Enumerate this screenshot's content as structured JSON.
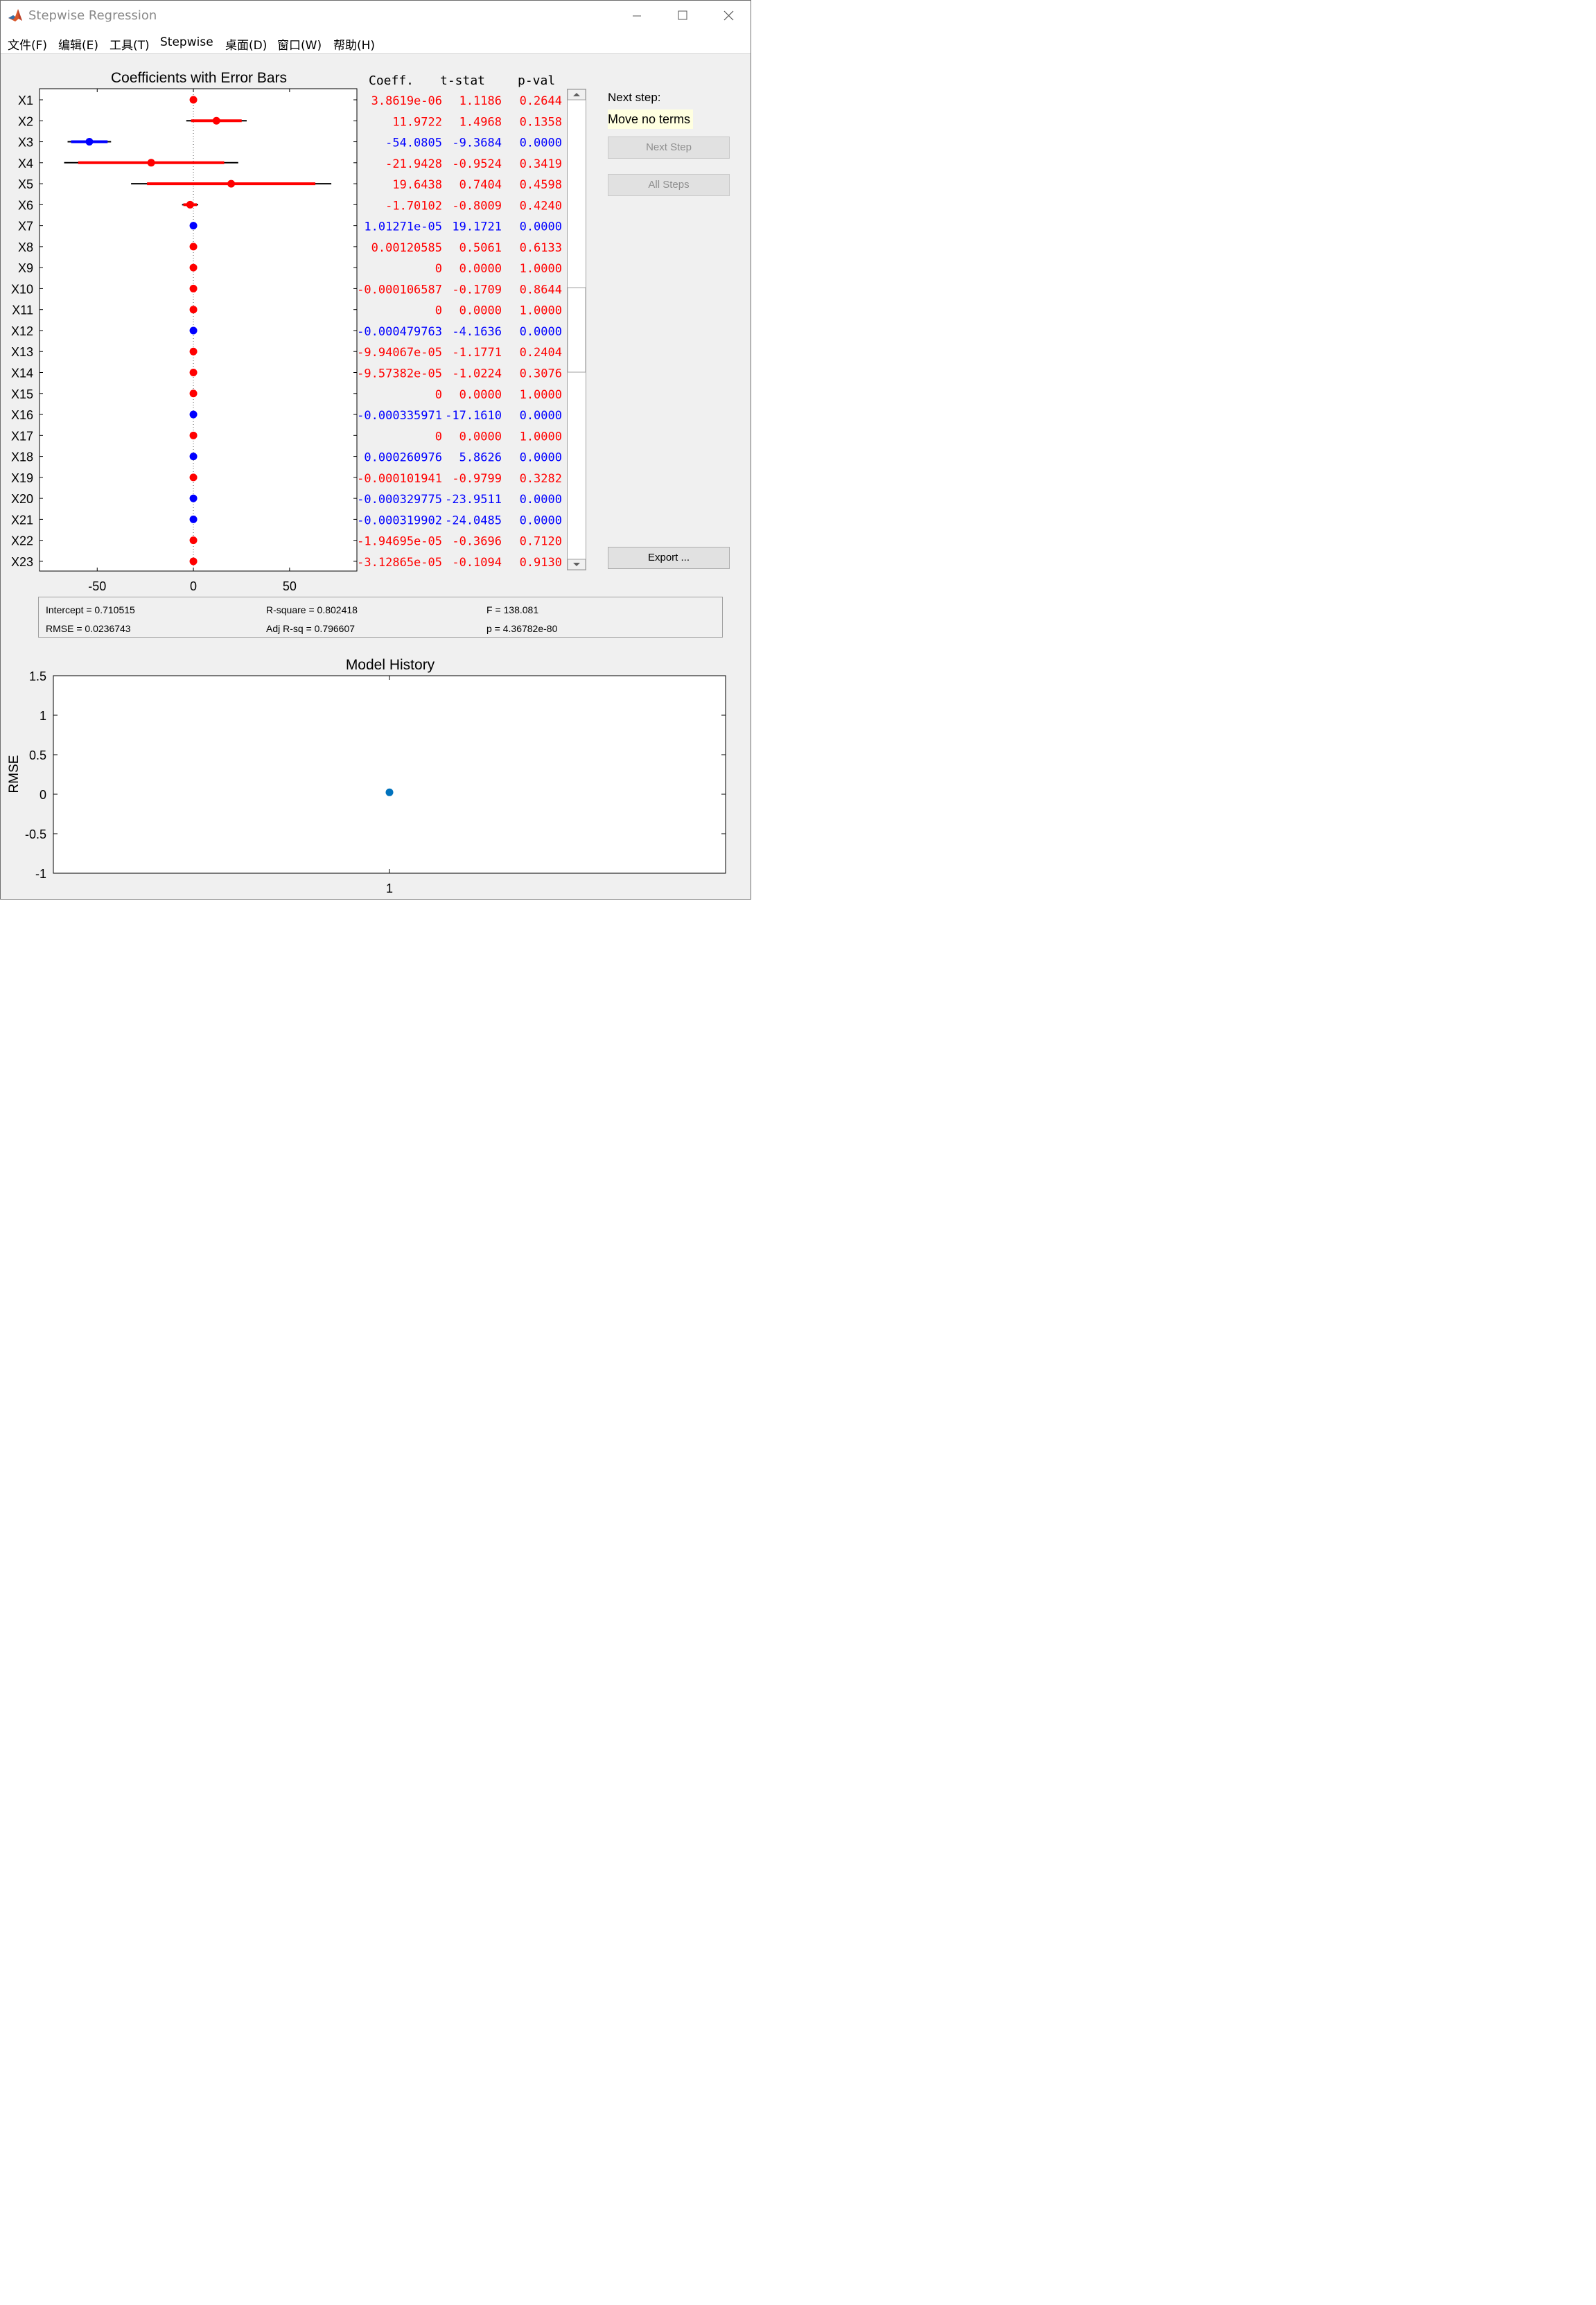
{
  "window": {
    "title": "Stepwise Regression",
    "controls": [
      "minimize",
      "maximize",
      "close"
    ]
  },
  "menu": [
    "文件(F)",
    "编辑(E)",
    "工具(T)",
    "Stepwise",
    "桌面(D)",
    "窗口(W)",
    "帮助(H)"
  ],
  "coef_plot": {
    "title": "Coefficients with Error Bars",
    "xlim": [
      -80,
      85
    ],
    "xticks": [
      "-50",
      "0",
      "50"
    ],
    "xtick_values": [
      -50,
      0,
      50
    ]
  },
  "table": {
    "headers": {
      "coeff": "Coeff.",
      "tstat": "t-stat",
      "pval": "p-val"
    },
    "rows": [
      {
        "label": "X1",
        "coeff": "3.8619e-06",
        "tstat": "1.1186",
        "pval": "0.2644",
        "in": false,
        "est": 0,
        "lo95": 0,
        "hi95": 0,
        "lo90": 0,
        "hi90": 0
      },
      {
        "label": "X2",
        "coeff": "11.9722",
        "tstat": "1.4968",
        "pval": "0.1358",
        "in": false,
        "est": 11.9722,
        "lo95": -3.7,
        "hi95": 27.7,
        "lo90": -1.2,
        "hi90": 25.1
      },
      {
        "label": "X3",
        "coeff": "-54.0805",
        "tstat": "-9.3684",
        "pval": "0.0000",
        "in": true,
        "est": -54.0805,
        "lo95": -65.4,
        "hi95": -42.8,
        "lo90": -63.6,
        "hi90": -44.6
      },
      {
        "label": "X4",
        "coeff": "-21.9428",
        "tstat": "-0.9524",
        "pval": "0.3419",
        "in": false,
        "est": -21.9428,
        "lo95": -67.2,
        "hi95": 23.3,
        "lo90": -59.9,
        "hi90": 16.0
      },
      {
        "label": "X5",
        "coeff": "19.6438",
        "tstat": "0.7404",
        "pval": "0.4598",
        "in": false,
        "est": 19.6438,
        "lo95": -32.4,
        "hi95": 71.7,
        "lo90": -24.1,
        "hi90": 63.4
      },
      {
        "label": "X6",
        "coeff": "-1.70102",
        "tstat": "-0.8009",
        "pval": "0.4240",
        "in": false,
        "est": -1.70102,
        "lo95": -5.9,
        "hi95": 2.5,
        "lo90": -5.2,
        "hi90": 1.8
      },
      {
        "label": "X7",
        "coeff": "1.01271e-05",
        "tstat": "19.1721",
        "pval": "0.0000",
        "in": true,
        "est": 0,
        "lo95": 0,
        "hi95": 0,
        "lo90": 0,
        "hi90": 0
      },
      {
        "label": "X8",
        "coeff": "0.00120585",
        "tstat": "0.5061",
        "pval": "0.6133",
        "in": false,
        "est": 0,
        "lo95": 0,
        "hi95": 0,
        "lo90": 0,
        "hi90": 0
      },
      {
        "label": "X9",
        "coeff": "0",
        "tstat": "0.0000",
        "pval": "1.0000",
        "in": false,
        "est": 0,
        "lo95": 0,
        "hi95": 0,
        "lo90": 0,
        "hi90": 0
      },
      {
        "label": "X10",
        "coeff": "-0.000106587",
        "tstat": "-0.1709",
        "pval": "0.8644",
        "in": false,
        "est": 0,
        "lo95": 0,
        "hi95": 0,
        "lo90": 0,
        "hi90": 0
      },
      {
        "label": "X11",
        "coeff": "0",
        "tstat": "0.0000",
        "pval": "1.0000",
        "in": false,
        "est": 0,
        "lo95": 0,
        "hi95": 0,
        "lo90": 0,
        "hi90": 0
      },
      {
        "label": "X12",
        "coeff": "-0.000479763",
        "tstat": "-4.1636",
        "pval": "0.0000",
        "in": true,
        "est": 0,
        "lo95": 0,
        "hi95": 0,
        "lo90": 0,
        "hi90": 0
      },
      {
        "label": "X13",
        "coeff": "-9.94067e-05",
        "tstat": "-1.1771",
        "pval": "0.2404",
        "in": false,
        "est": 0,
        "lo95": 0,
        "hi95": 0,
        "lo90": 0,
        "hi90": 0
      },
      {
        "label": "X14",
        "coeff": "-9.57382e-05",
        "tstat": "-1.0224",
        "pval": "0.3076",
        "in": false,
        "est": 0,
        "lo95": 0,
        "hi95": 0,
        "lo90": 0,
        "hi90": 0
      },
      {
        "label": "X15",
        "coeff": "0",
        "tstat": "0.0000",
        "pval": "1.0000",
        "in": false,
        "est": 0,
        "lo95": 0,
        "hi95": 0,
        "lo90": 0,
        "hi90": 0
      },
      {
        "label": "X16",
        "coeff": "-0.000335971",
        "tstat": "-17.1610",
        "pval": "0.0000",
        "in": true,
        "est": 0,
        "lo95": 0,
        "hi95": 0,
        "lo90": 0,
        "hi90": 0
      },
      {
        "label": "X17",
        "coeff": "0",
        "tstat": "0.0000",
        "pval": "1.0000",
        "in": false,
        "est": 0,
        "lo95": 0,
        "hi95": 0,
        "lo90": 0,
        "hi90": 0
      },
      {
        "label": "X18",
        "coeff": "0.000260976",
        "tstat": "5.8626",
        "pval": "0.0000",
        "in": true,
        "est": 0,
        "lo95": 0,
        "hi95": 0,
        "lo90": 0,
        "hi90": 0
      },
      {
        "label": "X19",
        "coeff": "-0.000101941",
        "tstat": "-0.9799",
        "pval": "0.3282",
        "in": false,
        "est": 0,
        "lo95": 0,
        "hi95": 0,
        "lo90": 0,
        "hi90": 0
      },
      {
        "label": "X20",
        "coeff": "-0.000329775",
        "tstat": "-23.9511",
        "pval": "0.0000",
        "in": true,
        "est": 0,
        "lo95": 0,
        "hi95": 0,
        "lo90": 0,
        "hi90": 0
      },
      {
        "label": "X21",
        "coeff": "-0.000319902",
        "tstat": "-24.0485",
        "pval": "0.0000",
        "in": true,
        "est": 0,
        "lo95": 0,
        "hi95": 0,
        "lo90": 0,
        "hi90": 0
      },
      {
        "label": "X22",
        "coeff": "-1.94695e-05",
        "tstat": "-0.3696",
        "pval": "0.7120",
        "in": false,
        "est": 0,
        "lo95": 0,
        "hi95": 0,
        "lo90": 0,
        "hi90": 0
      },
      {
        "label": "X23",
        "coeff": "-3.12865e-05",
        "tstat": "-0.1094",
        "pval": "0.9130",
        "in": false,
        "est": 0,
        "lo95": 0,
        "hi95": 0,
        "lo90": 0,
        "hi90": 0
      }
    ]
  },
  "colors": {
    "in_model": "#0000ff",
    "out_model": "#ff0000",
    "history_point": "#0072bd",
    "next_step_bg": "#ffffe0"
  },
  "side": {
    "next_step_label": "Next step:",
    "next_step_value": "Move no terms",
    "next_step_button": "Next Step",
    "all_steps_button": "All Steps",
    "export_button": "Export ..."
  },
  "stats": {
    "intercept": "Intercept = 0.710515",
    "rmse": "RMSE = 0.0236743",
    "rsquare": "R-square = 0.802418",
    "adj_rsq": "Adj R-sq = 0.796607",
    "f": "F = 138.081",
    "p": "p = 4.36782e-80"
  },
  "chart_data": {
    "type": "scatter",
    "title": "Model History",
    "ylabel": "RMSE",
    "xlabel": "",
    "x": [
      1
    ],
    "y": [
      0.0236743
    ],
    "ylim": [
      -1,
      1.5
    ],
    "yticks": [
      "1.5",
      "1",
      "0.5",
      "0",
      "-0.5",
      "-1"
    ],
    "ytick_values": [
      1.5,
      1,
      0.5,
      0,
      -0.5,
      -1
    ],
    "xticks": [
      "1"
    ]
  }
}
